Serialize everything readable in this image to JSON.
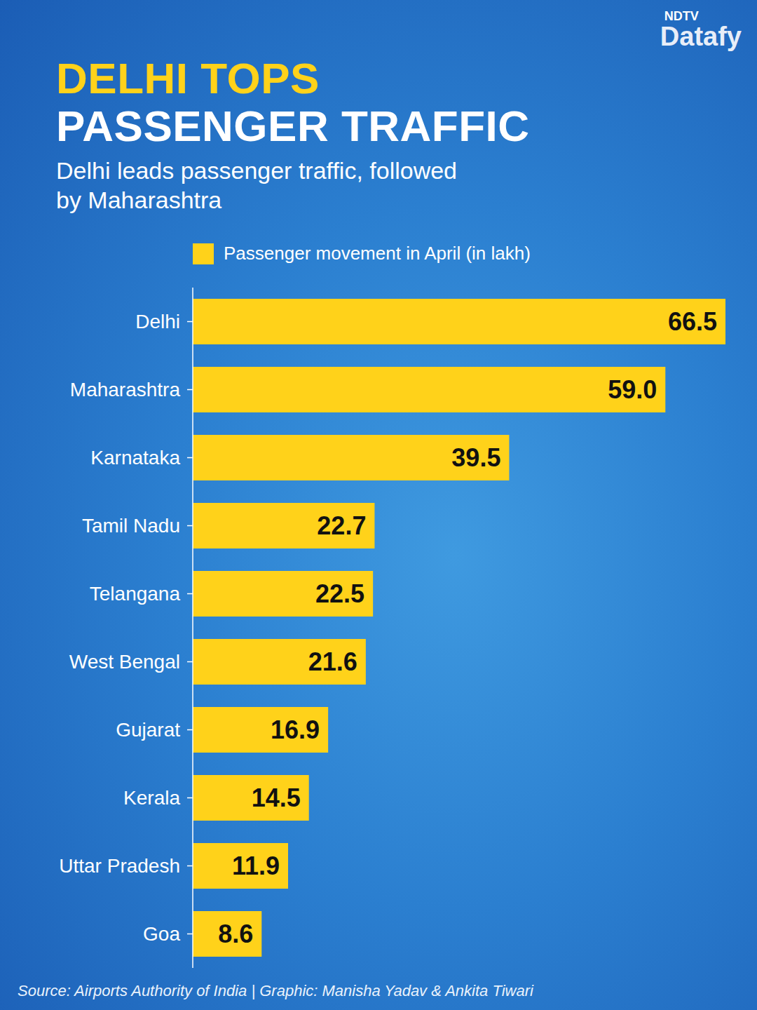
{
  "chart_data": {
    "type": "bar",
    "orientation": "horizontal",
    "title": [
      "DELHI TOPS",
      "PASSENGER TRAFFIC"
    ],
    "subtitle": "Delhi leads passenger traffic, followed by Maharashtra",
    "categories": [
      "Delhi",
      "Maharashtra",
      "Karnataka",
      "Tamil Nadu",
      "Telangana",
      "West Bengal",
      "Gujarat",
      "Kerala",
      "Uttar Pradesh",
      "Goa"
    ],
    "series": [
      {
        "name": "Passenger movement in April (in lakh)",
        "color": "#ffd21a",
        "values": [
          66.5,
          59.0,
          39.5,
          22.7,
          22.5,
          21.6,
          16.9,
          14.5,
          11.9,
          8.6
        ],
        "value_labels": [
          "66.5",
          "59.0",
          "39.5",
          "22.7",
          "22.5",
          "21.6",
          "16.9",
          "14.5",
          "11.9",
          "8.6"
        ]
      }
    ],
    "xlim": [
      0,
      66.5
    ],
    "data_labels": true,
    "tick_labels": "y",
    "legend": "top",
    "grid": false,
    "source": "Source: Airports Authority of India | Graphic: Manisha Yadav & Ankita Tiwari",
    "brand": [
      "NDTV",
      "Datafy"
    ]
  }
}
